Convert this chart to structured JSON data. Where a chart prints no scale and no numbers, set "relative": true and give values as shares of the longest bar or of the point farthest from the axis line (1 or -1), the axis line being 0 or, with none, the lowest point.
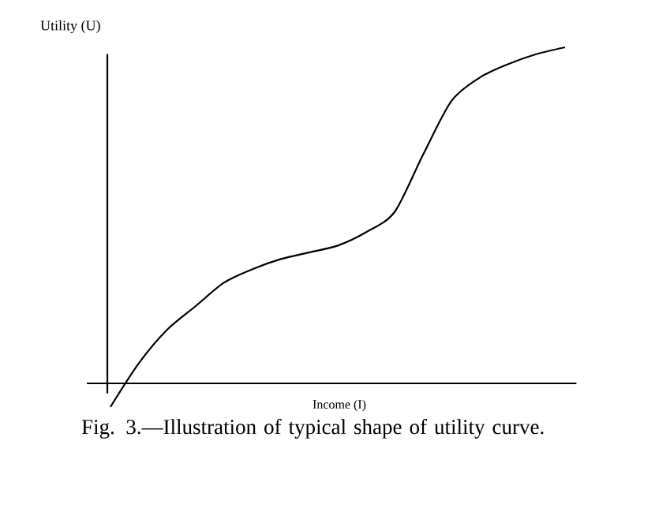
{
  "chart_data": {
    "type": "line",
    "relative": true,
    "xlabel": "Income (I)",
    "ylabel": "Utility (U)",
    "annotations": [
      "Fig. 3.—Illustration of typical shape of utility curve."
    ],
    "categories": [
      null,
      null,
      null,
      null,
      null,
      null,
      null,
      null,
      null,
      null,
      null,
      null,
      null,
      null,
      null,
      null,
      null
    ],
    "series": [
      {
        "color": "#000000",
        "values": [
          -0.07,
          0.06,
          0.16,
          0.23,
          0.3,
          0.34,
          0.37,
          0.39,
          0.41,
          0.45,
          0.51,
          0.68,
          0.84,
          0.91,
          0.95,
          0.98,
          1.0
        ]
      }
    ],
    "marker": "none",
    "line_style": "solid"
  }
}
